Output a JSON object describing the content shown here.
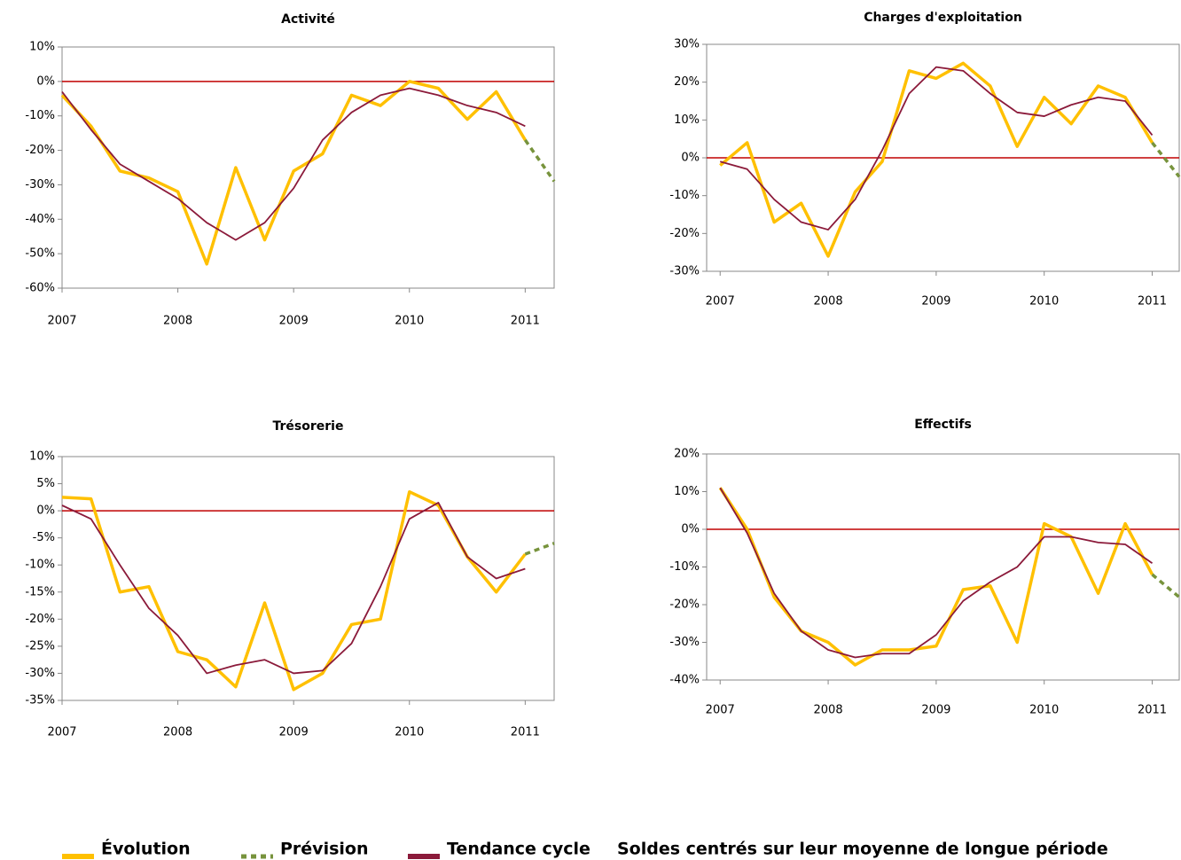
{
  "chart_data": [
    {
      "type": "line",
      "title": "Activité",
      "x": [
        2007,
        2007.25,
        2007.5,
        2007.75,
        2008,
        2008.25,
        2008.5,
        2008.75,
        2009,
        2009.25,
        2009.5,
        2009.75,
        2010,
        2010.25,
        2010.5,
        2010.75,
        2011,
        2011.25
      ],
      "series": [
        {
          "name": "Évolution",
          "color": "#ffc000",
          "values": [
            -4,
            -13,
            -26,
            -28,
            -32,
            -53,
            -25,
            -46,
            -26,
            -21,
            -4,
            -7,
            0,
            -2,
            -11,
            -3,
            -17,
            null
          ]
        },
        {
          "name": "Prévision",
          "color": "#77933c",
          "dashed": true,
          "values": [
            null,
            null,
            null,
            null,
            null,
            null,
            null,
            null,
            null,
            null,
            null,
            null,
            null,
            null,
            null,
            null,
            -17,
            -29
          ]
        },
        {
          "name": "Tendance cycle",
          "color": "#8b1a3a",
          "values": [
            -3,
            -14,
            -24,
            -29,
            -34,
            -41,
            -46,
            -41,
            -31,
            -17,
            -9,
            -4,
            -2,
            -4,
            -7,
            -9,
            -13,
            null
          ]
        }
      ],
      "hline": {
        "value": 0,
        "color": "#c00000"
      },
      "xlim": [
        2007,
        2011.25
      ],
      "xticks": [
        2007,
        2008,
        2009,
        2010,
        2011
      ],
      "ylim": [
        -60,
        10
      ],
      "yticks": [
        {
          "value": -60,
          "label": "-60%"
        },
        {
          "value": -50,
          "label": "-50%"
        },
        {
          "value": -40,
          "label": "-40%"
        },
        {
          "value": -30,
          "label": "-30%"
        },
        {
          "value": -20,
          "label": "-20%"
        },
        {
          "value": -10,
          "label": "-10%"
        },
        {
          "value": 0,
          "label": "0%"
        },
        {
          "value": 10,
          "label": "10%"
        }
      ]
    },
    {
      "type": "line",
      "title": "Charges d'exploitation",
      "x": [
        2007,
        2007.25,
        2007.5,
        2007.75,
        2008,
        2008.25,
        2008.5,
        2008.75,
        2009,
        2009.25,
        2009.5,
        2009.75,
        2010,
        2010.25,
        2010.5,
        2010.75,
        2011,
        2011.25
      ],
      "series": [
        {
          "name": "Évolution",
          "color": "#ffc000",
          "values": [
            -2,
            4,
            -17,
            -12,
            -26,
            -9,
            -1,
            23,
            21,
            25,
            19,
            3,
            16,
            9,
            19,
            16,
            4,
            null
          ]
        },
        {
          "name": "Prévision",
          "color": "#77933c",
          "dashed": true,
          "values": [
            null,
            null,
            null,
            null,
            null,
            null,
            null,
            null,
            null,
            null,
            null,
            null,
            null,
            null,
            null,
            null,
            4,
            -5
          ]
        },
        {
          "name": "Tendance cycle",
          "color": "#8b1a3a",
          "values": [
            -1,
            -3,
            -11,
            -17,
            -19,
            -11,
            2,
            17,
            24,
            23,
            17,
            12,
            11,
            14,
            16,
            15,
            6,
            null
          ]
        }
      ],
      "hline": {
        "value": 0,
        "color": "#c00000"
      },
      "xlim": [
        2006.875,
        2011.25
      ],
      "xticks": [
        2007,
        2008,
        2009,
        2010,
        2011
      ],
      "ylim": [
        -30,
        30
      ],
      "yticks": [
        {
          "value": -30,
          "label": "-30%"
        },
        {
          "value": -20,
          "label": "-20%"
        },
        {
          "value": -10,
          "label": "-10%"
        },
        {
          "value": 0,
          "label": "0%"
        },
        {
          "value": 10,
          "label": "10%"
        },
        {
          "value": 20,
          "label": "20%"
        },
        {
          "value": 30,
          "label": "30%"
        }
      ]
    },
    {
      "type": "line",
      "title": "Trésorerie",
      "x": [
        2007,
        2007.25,
        2007.5,
        2007.75,
        2008,
        2008.25,
        2008.5,
        2008.75,
        2009,
        2009.25,
        2009.5,
        2009.75,
        2010,
        2010.25,
        2010.5,
        2010.75,
        2011,
        2011.25
      ],
      "series": [
        {
          "name": "Évolution",
          "color": "#ffc000",
          "values": [
            2.5,
            2.2,
            -15,
            -14,
            -26,
            -27.5,
            -32.5,
            -17,
            -33,
            -30,
            -21,
            -20,
            3.5,
            1,
            -8.5,
            -15,
            -8,
            null
          ]
        },
        {
          "name": "Prévision",
          "color": "#77933c",
          "dashed": true,
          "values": [
            null,
            null,
            null,
            null,
            null,
            null,
            null,
            null,
            null,
            null,
            null,
            null,
            null,
            null,
            null,
            null,
            -8,
            -6
          ]
        },
        {
          "name": "Tendance cycle",
          "color": "#8b1a3a",
          "values": [
            1,
            -1.5,
            -10,
            -18,
            -23,
            -30,
            -28.5,
            -27.5,
            -30,
            -29.5,
            -24.5,
            -14,
            -1.5,
            1.5,
            -8.5,
            -12.5,
            -10.7,
            null
          ]
        }
      ],
      "hline": {
        "value": 0,
        "color": "#c00000"
      },
      "xlim": [
        2007,
        2011.25
      ],
      "xticks": [
        2007,
        2008,
        2009,
        2010,
        2011
      ],
      "ylim": [
        -35,
        10
      ],
      "yticks": [
        {
          "value": -35,
          "label": "-35%"
        },
        {
          "value": -30,
          "label": "-30%"
        },
        {
          "value": -25,
          "label": "-25%"
        },
        {
          "value": -20,
          "label": "-20%"
        },
        {
          "value": -15,
          "label": "-15%"
        },
        {
          "value": -10,
          "label": "-10%"
        },
        {
          "value": -5,
          "label": "-5%"
        },
        {
          "value": 0,
          "label": "0%"
        },
        {
          "value": 5,
          "label": "5%"
        },
        {
          "value": 10,
          "label": "10%"
        }
      ]
    },
    {
      "type": "line",
      "title": "Effectifs",
      "x": [
        2007,
        2007.25,
        2007.5,
        2007.75,
        2008,
        2008.25,
        2008.5,
        2008.75,
        2009,
        2009.25,
        2009.5,
        2009.75,
        2010,
        2010.25,
        2010.5,
        2010.75,
        2011,
        2011.25
      ],
      "series": [
        {
          "name": "Évolution",
          "color": "#ffc000",
          "values": [
            11,
            0,
            -18,
            -27,
            -30,
            -36,
            -32,
            -32,
            -31,
            -16,
            -15,
            -30,
            1.5,
            -2,
            -17,
            1.5,
            -12,
            null
          ]
        },
        {
          "name": "Prévision",
          "color": "#77933c",
          "dashed": true,
          "values": [
            null,
            null,
            null,
            null,
            null,
            null,
            null,
            null,
            null,
            null,
            null,
            null,
            null,
            null,
            null,
            null,
            -12,
            -18
          ]
        },
        {
          "name": "Tendance cycle",
          "color": "#8b1a3a",
          "values": [
            11,
            -1,
            -17,
            -27,
            -32,
            -34,
            -33,
            -33,
            -28,
            -19,
            -14,
            -10,
            -2,
            -2,
            -3.5,
            -4,
            -9,
            null
          ]
        }
      ],
      "hline": {
        "value": 0,
        "color": "#c00000"
      },
      "xlim": [
        2006.875,
        2011.25
      ],
      "xticks": [
        2007,
        2008,
        2009,
        2010,
        2011
      ],
      "ylim": [
        -40,
        20
      ],
      "yticks": [
        {
          "value": -40,
          "label": "-40%"
        },
        {
          "value": -30,
          "label": "-30%"
        },
        {
          "value": -20,
          "label": "-20%"
        },
        {
          "value": -10,
          "label": "-10%"
        },
        {
          "value": 0,
          "label": "0%"
        },
        {
          "value": 10,
          "label": "10%"
        },
        {
          "value": 20,
          "label": "20%"
        }
      ]
    }
  ],
  "note": "Soldes centrés sur leur moyenne de longue période"
}
